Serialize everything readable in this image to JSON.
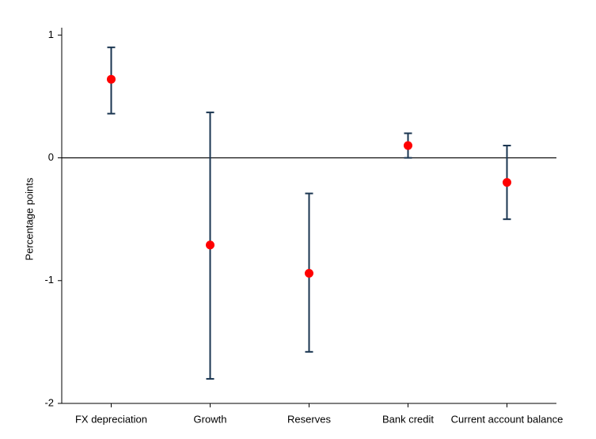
{
  "chart_data": {
    "type": "errorbar",
    "y_label": "Percentage points",
    "categories": [
      "FX depreciation",
      "Growth",
      "Reserves",
      "Bank credit",
      "Current account balance"
    ],
    "series": [
      {
        "color": "#ff0000",
        "bar_color": "#1a3550",
        "values": [
          0.64,
          -0.71,
          -0.94,
          0.1,
          -0.2
        ],
        "lower": [
          0.36,
          -1.8,
          -1.58,
          0.0,
          -0.5
        ],
        "upper": [
          0.9,
          0.37,
          -0.29,
          0.2,
          0.1
        ]
      }
    ],
    "ylim": [
      -2,
      1.06
    ],
    "yticks": [
      -2,
      -1,
      0,
      1
    ],
    "reference_line": 0
  }
}
